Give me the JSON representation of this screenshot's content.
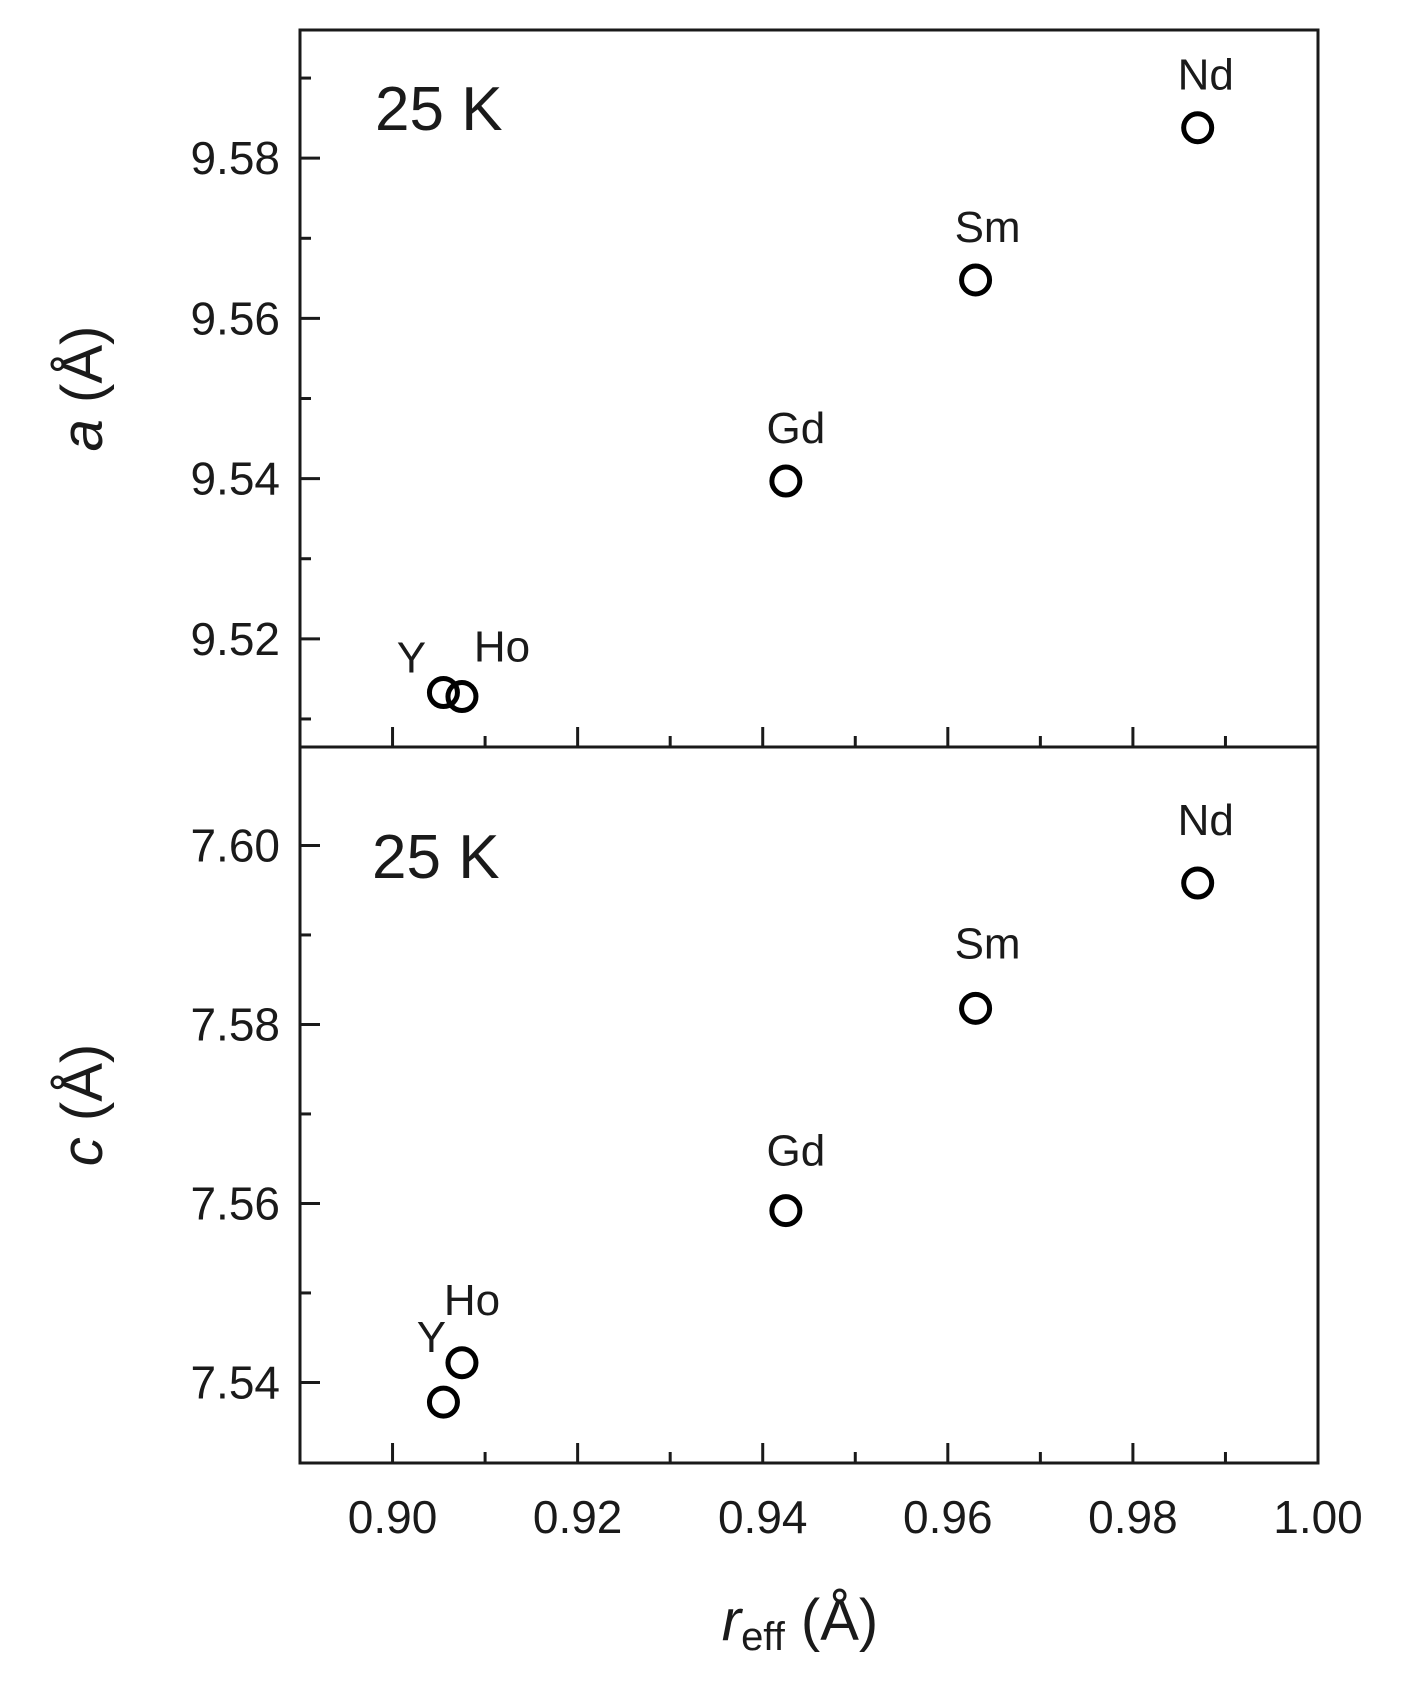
{
  "chart_data": [
    {
      "type": "scatter",
      "annotation": "25 K",
      "ylabel_var": "a",
      "ylabel_unit": " (Å)",
      "xlim": [
        0.89,
        1.0
      ],
      "ylim": [
        9.5065,
        9.596
      ],
      "x_major_ticks": [
        0.9,
        0.92,
        0.94,
        0.96,
        0.98,
        1.0
      ],
      "x_tick_labels": [],
      "y_major_ticks": [
        9.52,
        9.54,
        9.56,
        9.58
      ],
      "y_tick_labels": [
        "9.52",
        "9.54",
        "9.56",
        "9.58"
      ],
      "y_minor_ticks": [
        9.51,
        9.53,
        9.55,
        9.57,
        9.59
      ],
      "points": [
        {
          "label": "Y",
          "x": 0.9055,
          "y": 9.5133
        },
        {
          "label": "Ho",
          "x": 0.9075,
          "y": 9.5128
        },
        {
          "label": "Gd",
          "x": 0.9425,
          "y": 9.5397
        },
        {
          "label": "Sm",
          "x": 0.963,
          "y": 9.5648
        },
        {
          "label": "Nd",
          "x": 0.987,
          "y": 9.5838
        }
      ]
    },
    {
      "type": "scatter",
      "annotation": "25 K",
      "ylabel_var": "c",
      "ylabel_unit": " (Å)",
      "xlim": [
        0.89,
        1.0
      ],
      "ylim": [
        7.531,
        7.611
      ],
      "x_major_ticks": [
        0.9,
        0.92,
        0.94,
        0.96,
        0.98,
        1.0
      ],
      "x_tick_labels": [
        "0.90",
        "0.92",
        "0.94",
        "0.96",
        "0.98",
        "1.00"
      ],
      "y_major_ticks": [
        7.54,
        7.56,
        7.58,
        7.6
      ],
      "y_tick_labels": [
        "7.54",
        "7.56",
        "7.58",
        "7.60"
      ],
      "y_minor_ticks": [
        7.55,
        7.57,
        7.59
      ],
      "points": [
        {
          "label": "Y",
          "x": 0.9055,
          "y": 7.5378
        },
        {
          "label": "Ho",
          "x": 0.9075,
          "y": 7.5422
        },
        {
          "label": "Gd",
          "x": 0.9425,
          "y": 7.5592
        },
        {
          "label": "Sm",
          "x": 0.963,
          "y": 7.5818
        },
        {
          "label": "Nd",
          "x": 0.987,
          "y": 7.5958
        }
      ]
    }
  ],
  "x_minor_ticks": [
    0.91,
    0.93,
    0.95,
    0.97,
    0.99
  ],
  "xlabel": {
    "var": "r",
    "sub": "eff",
    "unit": " (Å)"
  }
}
